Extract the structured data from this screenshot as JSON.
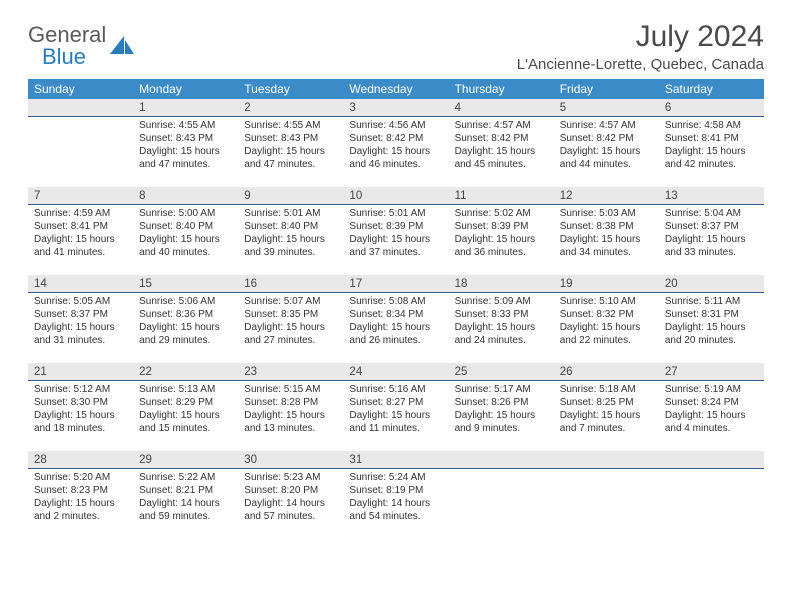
{
  "logo": {
    "word1": "General",
    "word2": "Blue"
  },
  "title": "July 2024",
  "location": "L'Ancienne-Lorette, Quebec, Canada",
  "colors": {
    "header_bg": "#3b8bc9",
    "header_text": "#ffffff",
    "dayrow_bg": "#e8e8e8",
    "dayrow_border": "#2d5a8a",
    "text": "#333333",
    "title_text": "#4a4a4a",
    "logo_gray": "#5a5a5a",
    "logo_blue": "#2b7bbf"
  },
  "fonts": {
    "family": "Arial, Helvetica, sans-serif",
    "title_size": 30,
    "location_size": 15,
    "dayhead_size": 12,
    "daynum_size": 11.5,
    "body_size": 10
  },
  "day_names": [
    "Sunday",
    "Monday",
    "Tuesday",
    "Wednesday",
    "Thursday",
    "Friday",
    "Saturday"
  ],
  "weeks": [
    [
      {
        "num": "",
        "lines": []
      },
      {
        "num": "1",
        "lines": [
          "Sunrise: 4:55 AM",
          "Sunset: 8:43 PM",
          "Daylight: 15 hours",
          "and 47 minutes."
        ]
      },
      {
        "num": "2",
        "lines": [
          "Sunrise: 4:55 AM",
          "Sunset: 8:43 PM",
          "Daylight: 15 hours",
          "and 47 minutes."
        ]
      },
      {
        "num": "3",
        "lines": [
          "Sunrise: 4:56 AM",
          "Sunset: 8:42 PM",
          "Daylight: 15 hours",
          "and 46 minutes."
        ]
      },
      {
        "num": "4",
        "lines": [
          "Sunrise: 4:57 AM",
          "Sunset: 8:42 PM",
          "Daylight: 15 hours",
          "and 45 minutes."
        ]
      },
      {
        "num": "5",
        "lines": [
          "Sunrise: 4:57 AM",
          "Sunset: 8:42 PM",
          "Daylight: 15 hours",
          "and 44 minutes."
        ]
      },
      {
        "num": "6",
        "lines": [
          "Sunrise: 4:58 AM",
          "Sunset: 8:41 PM",
          "Daylight: 15 hours",
          "and 42 minutes."
        ]
      }
    ],
    [
      {
        "num": "7",
        "lines": [
          "Sunrise: 4:59 AM",
          "Sunset: 8:41 PM",
          "Daylight: 15 hours",
          "and 41 minutes."
        ]
      },
      {
        "num": "8",
        "lines": [
          "Sunrise: 5:00 AM",
          "Sunset: 8:40 PM",
          "Daylight: 15 hours",
          "and 40 minutes."
        ]
      },
      {
        "num": "9",
        "lines": [
          "Sunrise: 5:01 AM",
          "Sunset: 8:40 PM",
          "Daylight: 15 hours",
          "and 39 minutes."
        ]
      },
      {
        "num": "10",
        "lines": [
          "Sunrise: 5:01 AM",
          "Sunset: 8:39 PM",
          "Daylight: 15 hours",
          "and 37 minutes."
        ]
      },
      {
        "num": "11",
        "lines": [
          "Sunrise: 5:02 AM",
          "Sunset: 8:39 PM",
          "Daylight: 15 hours",
          "and 36 minutes."
        ]
      },
      {
        "num": "12",
        "lines": [
          "Sunrise: 5:03 AM",
          "Sunset: 8:38 PM",
          "Daylight: 15 hours",
          "and 34 minutes."
        ]
      },
      {
        "num": "13",
        "lines": [
          "Sunrise: 5:04 AM",
          "Sunset: 8:37 PM",
          "Daylight: 15 hours",
          "and 33 minutes."
        ]
      }
    ],
    [
      {
        "num": "14",
        "lines": [
          "Sunrise: 5:05 AM",
          "Sunset: 8:37 PM",
          "Daylight: 15 hours",
          "and 31 minutes."
        ]
      },
      {
        "num": "15",
        "lines": [
          "Sunrise: 5:06 AM",
          "Sunset: 8:36 PM",
          "Daylight: 15 hours",
          "and 29 minutes."
        ]
      },
      {
        "num": "16",
        "lines": [
          "Sunrise: 5:07 AM",
          "Sunset: 8:35 PM",
          "Daylight: 15 hours",
          "and 27 minutes."
        ]
      },
      {
        "num": "17",
        "lines": [
          "Sunrise: 5:08 AM",
          "Sunset: 8:34 PM",
          "Daylight: 15 hours",
          "and 26 minutes."
        ]
      },
      {
        "num": "18",
        "lines": [
          "Sunrise: 5:09 AM",
          "Sunset: 8:33 PM",
          "Daylight: 15 hours",
          "and 24 minutes."
        ]
      },
      {
        "num": "19",
        "lines": [
          "Sunrise: 5:10 AM",
          "Sunset: 8:32 PM",
          "Daylight: 15 hours",
          "and 22 minutes."
        ]
      },
      {
        "num": "20",
        "lines": [
          "Sunrise: 5:11 AM",
          "Sunset: 8:31 PM",
          "Daylight: 15 hours",
          "and 20 minutes."
        ]
      }
    ],
    [
      {
        "num": "21",
        "lines": [
          "Sunrise: 5:12 AM",
          "Sunset: 8:30 PM",
          "Daylight: 15 hours",
          "and 18 minutes."
        ]
      },
      {
        "num": "22",
        "lines": [
          "Sunrise: 5:13 AM",
          "Sunset: 8:29 PM",
          "Daylight: 15 hours",
          "and 15 minutes."
        ]
      },
      {
        "num": "23",
        "lines": [
          "Sunrise: 5:15 AM",
          "Sunset: 8:28 PM",
          "Daylight: 15 hours",
          "and 13 minutes."
        ]
      },
      {
        "num": "24",
        "lines": [
          "Sunrise: 5:16 AM",
          "Sunset: 8:27 PM",
          "Daylight: 15 hours",
          "and 11 minutes."
        ]
      },
      {
        "num": "25",
        "lines": [
          "Sunrise: 5:17 AM",
          "Sunset: 8:26 PM",
          "Daylight: 15 hours",
          "and 9 minutes."
        ]
      },
      {
        "num": "26",
        "lines": [
          "Sunrise: 5:18 AM",
          "Sunset: 8:25 PM",
          "Daylight: 15 hours",
          "and 7 minutes."
        ]
      },
      {
        "num": "27",
        "lines": [
          "Sunrise: 5:19 AM",
          "Sunset: 8:24 PM",
          "Daylight: 15 hours",
          "and 4 minutes."
        ]
      }
    ],
    [
      {
        "num": "28",
        "lines": [
          "Sunrise: 5:20 AM",
          "Sunset: 8:23 PM",
          "Daylight: 15 hours",
          "and 2 minutes."
        ]
      },
      {
        "num": "29",
        "lines": [
          "Sunrise: 5:22 AM",
          "Sunset: 8:21 PM",
          "Daylight: 14 hours",
          "and 59 minutes."
        ]
      },
      {
        "num": "30",
        "lines": [
          "Sunrise: 5:23 AM",
          "Sunset: 8:20 PM",
          "Daylight: 14 hours",
          "and 57 minutes."
        ]
      },
      {
        "num": "31",
        "lines": [
          "Sunrise: 5:24 AM",
          "Sunset: 8:19 PM",
          "Daylight: 14 hours",
          "and 54 minutes."
        ]
      },
      {
        "num": "",
        "lines": []
      },
      {
        "num": "",
        "lines": []
      },
      {
        "num": "",
        "lines": []
      }
    ]
  ]
}
